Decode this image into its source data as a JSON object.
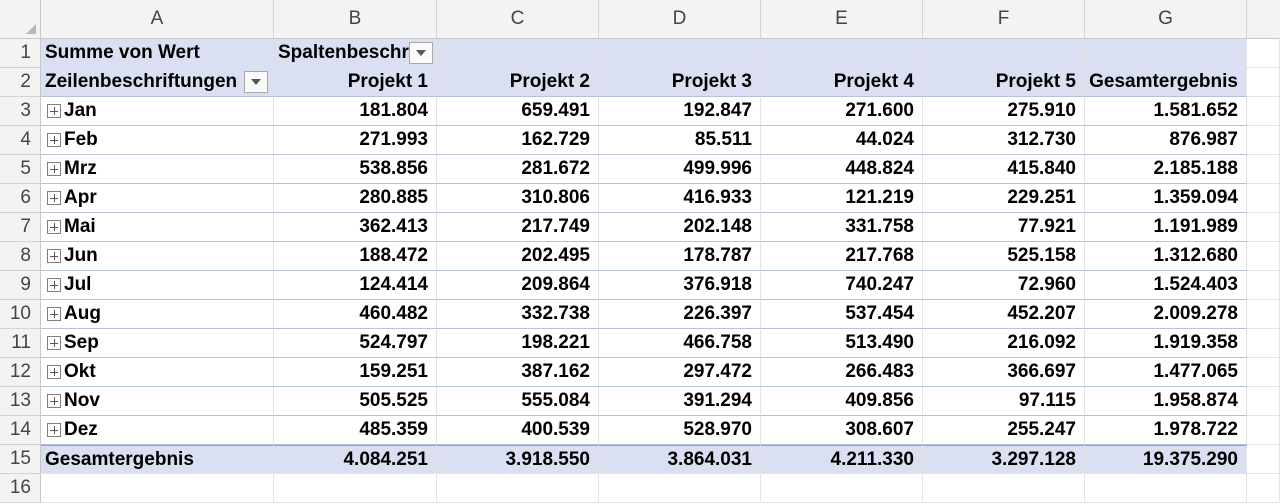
{
  "columns": [
    "A",
    "B",
    "C",
    "D",
    "E",
    "F",
    "G"
  ],
  "row_numbers": [
    "1",
    "2",
    "3",
    "4",
    "5",
    "6",
    "7",
    "8",
    "9",
    "10",
    "11",
    "12",
    "13",
    "14",
    "15",
    "16"
  ],
  "pivot": {
    "value_field": "Summe von Wert",
    "column_field": "Spaltenbeschr",
    "row_field": "Zeilenbeschriftungen",
    "headers": [
      "Projekt 1",
      "Projekt 2",
      "Projekt 3",
      "Projekt 4",
      "Projekt 5",
      "Gesamtergebnis"
    ],
    "rows": [
      {
        "label": "Jan",
        "values": [
          "181.804",
          "659.491",
          "192.847",
          "271.600",
          "275.910",
          "1.581.652"
        ]
      },
      {
        "label": "Feb",
        "values": [
          "271.993",
          "162.729",
          "85.511",
          "44.024",
          "312.730",
          "876.987"
        ]
      },
      {
        "label": "Mrz",
        "values": [
          "538.856",
          "281.672",
          "499.996",
          "448.824",
          "415.840",
          "2.185.188"
        ]
      },
      {
        "label": "Apr",
        "values": [
          "280.885",
          "310.806",
          "416.933",
          "121.219",
          "229.251",
          "1.359.094"
        ]
      },
      {
        "label": "Mai",
        "values": [
          "362.413",
          "217.749",
          "202.148",
          "331.758",
          "77.921",
          "1.191.989"
        ]
      },
      {
        "label": "Jun",
        "values": [
          "188.472",
          "202.495",
          "178.787",
          "217.768",
          "525.158",
          "1.312.680"
        ]
      },
      {
        "label": "Jul",
        "values": [
          "124.414",
          "209.864",
          "376.918",
          "740.247",
          "72.960",
          "1.524.403"
        ]
      },
      {
        "label": "Aug",
        "values": [
          "460.482",
          "332.738",
          "226.397",
          "537.454",
          "452.207",
          "2.009.278"
        ]
      },
      {
        "label": "Sep",
        "values": [
          "524.797",
          "198.221",
          "466.758",
          "513.490",
          "216.092",
          "1.919.358"
        ]
      },
      {
        "label": "Okt",
        "values": [
          "159.251",
          "387.162",
          "297.472",
          "266.483",
          "366.697",
          "1.477.065"
        ]
      },
      {
        "label": "Nov",
        "values": [
          "505.525",
          "555.084",
          "391.294",
          "409.856",
          "97.115",
          "1.958.874"
        ]
      },
      {
        "label": "Dez",
        "values": [
          "485.359",
          "400.539",
          "528.970",
          "308.607",
          "255.247",
          "1.978.722"
        ]
      }
    ],
    "total": {
      "label": "Gesamtergebnis",
      "values": [
        "4.084.251",
        "3.918.550",
        "3.864.031",
        "4.211.330",
        "3.297.128",
        "19.375.290"
      ]
    }
  },
  "colors": {
    "pivot_header_bg": "#dae0f1",
    "grid_line": "#e3e3e3",
    "header_bg": "#f3f3f3"
  },
  "icons": {
    "expand": "plus-box-icon",
    "filter": "dropdown-arrow-icon",
    "select_all": "select-all-triangle-icon"
  }
}
